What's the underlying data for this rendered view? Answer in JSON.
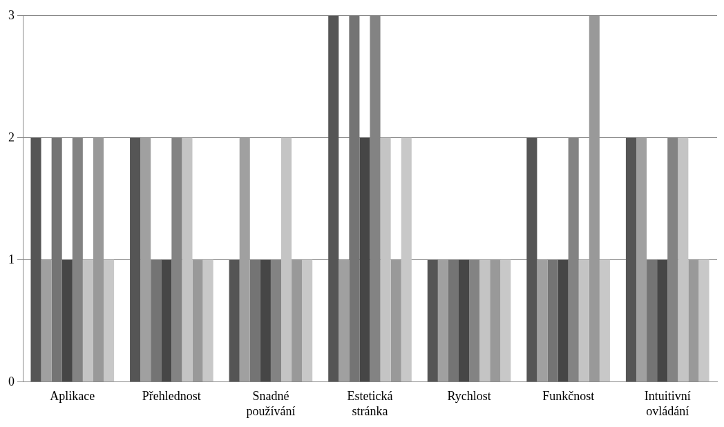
{
  "chart_data": {
    "type": "bar",
    "categories": [
      "Aplikace",
      "Přehlednost",
      "Snadné používání",
      "Estetická stránka",
      "Rychlost",
      "Funkčnost",
      "Intuitivní ovládání"
    ],
    "series": [
      {
        "color": "#555555",
        "values": [
          2,
          2,
          1,
          3,
          1,
          2,
          2
        ]
      },
      {
        "color": "#a0a0a0",
        "values": [
          1,
          2,
          2,
          1,
          1,
          1,
          2
        ]
      },
      {
        "color": "#747474",
        "values": [
          2,
          1,
          1,
          3,
          1,
          1,
          1
        ]
      },
      {
        "color": "#464646",
        "values": [
          1,
          1,
          1,
          2,
          1,
          1,
          1
        ]
      },
      {
        "color": "#838383",
        "values": [
          2,
          2,
          1,
          3,
          1,
          2,
          2
        ]
      },
      {
        "color": "#c4c4c4",
        "values": [
          1,
          2,
          2,
          2,
          1,
          1,
          2
        ]
      },
      {
        "color": "#999999",
        "values": [
          2,
          1,
          1,
          1,
          1,
          3,
          1
        ]
      },
      {
        "color": "#c8c8c8",
        "values": [
          1,
          1,
          1,
          2,
          1,
          1,
          1
        ]
      }
    ],
    "ylim": [
      0,
      3
    ],
    "yticks": [
      0,
      1,
      2,
      3
    ],
    "grid": "y",
    "legend": false
  }
}
